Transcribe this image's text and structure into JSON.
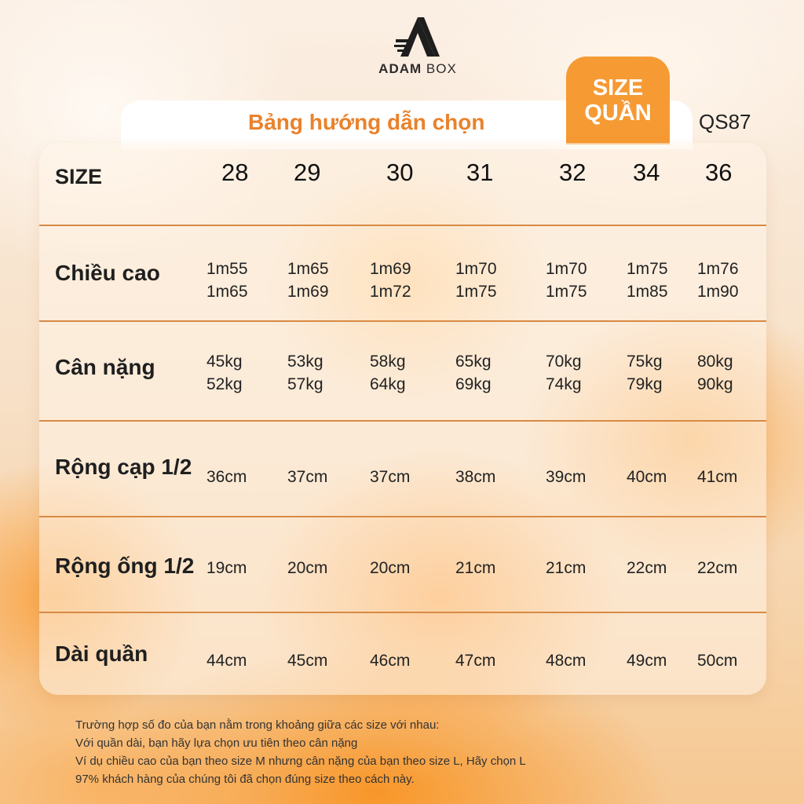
{
  "brand": {
    "name_bold": "ADAM",
    "name_light": "BOX"
  },
  "header": {
    "title": "Bảng hướng dẫn chọn",
    "badge_line1": "SIZE",
    "badge_line2": "QUẦN",
    "code": "QS87"
  },
  "table": {
    "size_label": "SIZE",
    "sizes": [
      "28",
      "29",
      "30",
      "31",
      "32",
      "34",
      "36"
    ],
    "rows": [
      {
        "label": "Chiều cao",
        "values": [
          [
            "1m55",
            "1m65"
          ],
          [
            "1m65",
            "1m69"
          ],
          [
            "1m69",
            "1m72"
          ],
          [
            "1m70",
            "1m75"
          ],
          [
            "1m70",
            "1m75"
          ],
          [
            "1m75",
            "1m85"
          ],
          [
            "1m76",
            "1m90"
          ]
        ]
      },
      {
        "label": "Cân nặng",
        "values": [
          [
            "45kg",
            "52kg"
          ],
          [
            "53kg",
            "57kg"
          ],
          [
            "58kg",
            "64kg"
          ],
          [
            "65kg",
            "69kg"
          ],
          [
            "70kg",
            "74kg"
          ],
          [
            "75kg",
            "79kg"
          ],
          [
            "80kg",
            "90kg"
          ]
        ]
      },
      {
        "label": "Rộng cạp 1/2",
        "values": [
          [
            "36cm"
          ],
          [
            "37cm"
          ],
          [
            "37cm"
          ],
          [
            "38cm"
          ],
          [
            "39cm"
          ],
          [
            "40cm"
          ],
          [
            "41cm"
          ]
        ]
      },
      {
        "label": "Rộng ống 1/2",
        "values": [
          [
            "19cm"
          ],
          [
            "20cm"
          ],
          [
            "20cm"
          ],
          [
            "21cm"
          ],
          [
            "21cm"
          ],
          [
            "22cm"
          ],
          [
            "22cm"
          ]
        ]
      },
      {
        "label": "Dài quần",
        "values": [
          [
            "44cm"
          ],
          [
            "45cm"
          ],
          [
            "46cm"
          ],
          [
            "47cm"
          ],
          [
            "48cm"
          ],
          [
            "49cm"
          ],
          [
            "50cm"
          ]
        ]
      }
    ]
  },
  "notes": [
    "Trường hợp số đo của bạn nằm trong khoảng giữa các size với nhau:",
    "Với quần dài, bạn hãy lựa chọn ưu tiên theo cân nặng",
    "Ví dụ chiều cao của bạn theo size M nhưng cân nặng của bạn theo size L, Hãy chọn L",
    "97% khách hàng của chúng tôi đã chọn đúng size theo cách này."
  ],
  "colors": {
    "accent": "#f69a33",
    "title": "#e9822c",
    "divider": "#d78a45"
  }
}
